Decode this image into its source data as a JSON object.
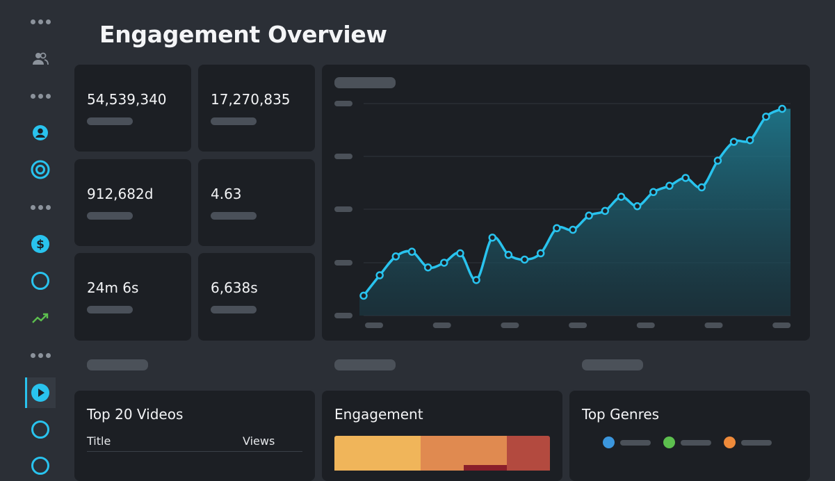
{
  "page": {
    "title": "Engagement Overview"
  },
  "sidebar": {
    "icons": [
      "more-icon",
      "users-icon",
      "more-icon",
      "user-circle-icon",
      "target-icon",
      "more-icon",
      "dollar-icon",
      "circle-icon",
      "trending-up-icon",
      "more-icon",
      "play-icon",
      "circle-icon",
      "circle-icon"
    ],
    "active": "play-icon"
  },
  "kpis": [
    {
      "value": "54,539,340"
    },
    {
      "value": "17,270,835"
    },
    {
      "value": "912,682d"
    },
    {
      "value": "4.63"
    },
    {
      "value": "24m 6s"
    },
    {
      "value": "6,638s"
    }
  ],
  "chart_data": {
    "type": "area",
    "series": [
      {
        "values": [
          10,
          23,
          35,
          38,
          28,
          31,
          37,
          20,
          47,
          36,
          33,
          37,
          53,
          52,
          61,
          64,
          73,
          67,
          76,
          80,
          85,
          79,
          96,
          108,
          109,
          124,
          129
        ]
      }
    ],
    "color": "#29c3ee",
    "grid": true
  },
  "panels": {
    "videos": {
      "title": "Top 20 Videos",
      "col_title": "Title",
      "col_views": "Views"
    },
    "engagement": {
      "title": "Engagement"
    },
    "genres": {
      "title": "Top Genres",
      "legend_colors": [
        "#3b96dd",
        "#5cbf4e",
        "#ee8a3a"
      ]
    }
  },
  "heatmap_colors": [
    "#f0b55a",
    "#e08a50",
    "#b34a3f"
  ],
  "colors": {
    "accent": "#29c3ee",
    "background": "#2b2f36",
    "card": "#1c1f24"
  }
}
